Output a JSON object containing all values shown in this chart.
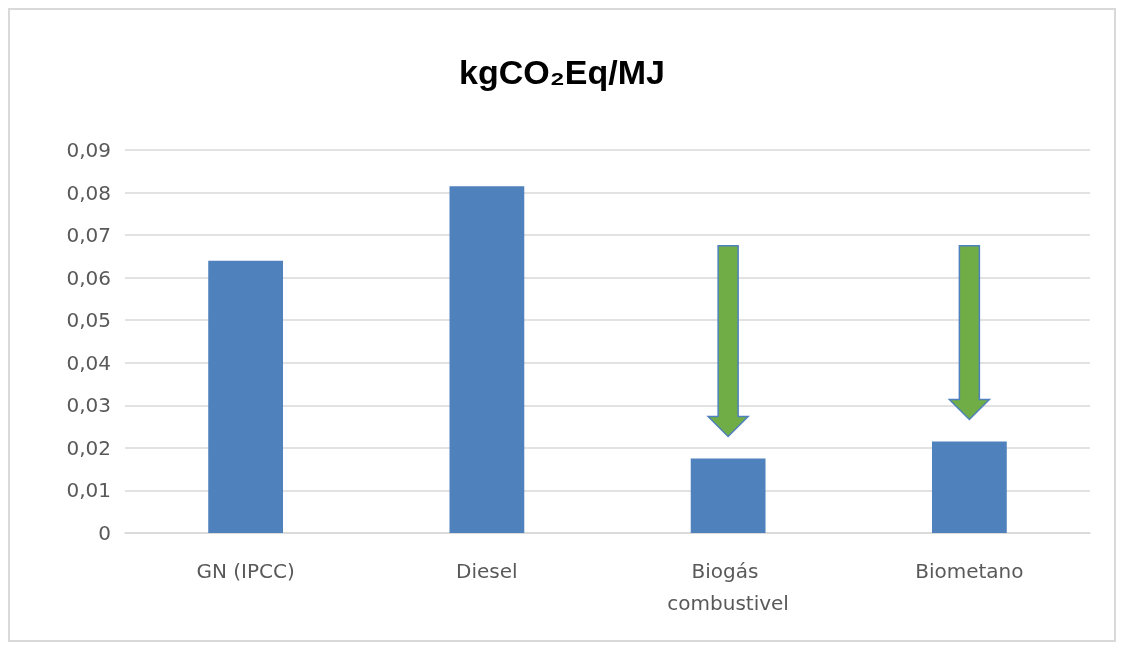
{
  "chart_data": {
    "type": "bar",
    "title": "kgCO₂Eq/MJ",
    "categories": [
      "GN (IPCC)",
      "Diesel",
      "Biogás combustivel",
      "Biometano"
    ],
    "values": [
      0.064,
      0.0815,
      0.0175,
      0.0215
    ],
    "color": "#4f81bd",
    "ylim": [
      0,
      0.09
    ],
    "yticks": [
      0,
      {
        "value": 0.01,
        "label": "0,01"
      },
      {
        "value": 0.02,
        "label": "0,02"
      },
      {
        "value": 0.03,
        "label": "0,03"
      },
      {
        "value": 0.04,
        "label": "0,04"
      },
      {
        "value": 0.05,
        "label": "0,05"
      },
      {
        "value": 0.06,
        "label": "0,06"
      },
      {
        "value": 0.07,
        "label": "0,07"
      },
      {
        "value": 0.08,
        "label": "0,08"
      },
      {
        "value": 0.09,
        "label": "0,09"
      }
    ],
    "grid": "y"
  }
}
